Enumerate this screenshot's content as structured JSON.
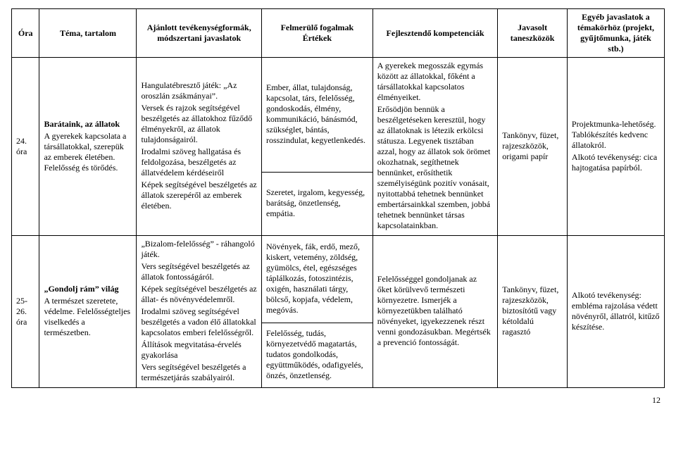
{
  "header": {
    "c1": "Óra",
    "c2": "Téma, tartalom",
    "c3": "Ajánlott tevékenységformák, módszertani javaslatok",
    "c4": "Felmerülő fogalmak Értékek",
    "c5": "Fejlesztendő kompetenciák",
    "c6": "Javasolt taneszközök",
    "c7": "Egyéb javaslatok a témakörhöz (projekt, gyűjtőmunka, játék stb.)"
  },
  "rows": [
    {
      "ora": "24. óra",
      "tema": {
        "title": "Barátaink, az állatok",
        "body": "A gyerekek kapcsolata a társállatokkal, szerepük az emberek életében. Felelősség és törődés."
      },
      "tevekenyseg": "Hangulatébresztő játék: „Az oroszlán zsákmányai”.\nVersek és rajzok segítségével beszélgetés az állatokhoz fűződő élményekről, az állatok tulajdonságairól.\nIrodalmi szöveg hallgatása és feldolgozása, beszélgetés az állatvédelem kérdéseiről\nKépek segítségével beszélgetés az állatok szerepéről az emberek életében.",
      "fogalmak_top": "Ember, állat, tulajdonság, kapcsolat, társ, felelősség, gondoskodás, élmény, kommunikáció, bánásmód, szükséglet, bántás, rosszindulat, kegyetlenkedés.",
      "fogalmak_bottom": "Szeretet, irgalom, kegyesség, barátság, önzetlenség, empátia.",
      "kompetenciak": "A gyerekek megosszák egymás között az állatokkal, főként a társállatokkal kapcsolatos élményeiket.\nErősödjön bennük a beszélgetéseken keresztül, hogy az állatoknak is létezik erkölcsi státusza. Legyenek tisztában azzal, hogy az állatok sok örömet okozhatnak, segíthetnek bennünket, erősíthetik személyiségünk pozitív vonásait, nyitottabbá tehetnek bennünket embertársainkkal szemben, jobbá tehetnek bennünket társas kapcsolatainkban.",
      "taneszkozok": "Tankönyv, füzet, rajzeszközök, origami papír",
      "egyeb": "Projektmunka-lehetőség. Tablókészítés kedvenc állatokról.\n\nAlkotó tevékenység: cica hajtogatása papírból."
    },
    {
      "ora": "25-26. óra",
      "tema": {
        "title": "„Gondolj rám” világ",
        "body": "A természet szeretete, védelme. Felelősségteljes viselkedés a természetben."
      },
      "tevekenyseg": "„Bizalom-felelősség” - ráhangoló játék.\nVers segítségével beszélgetés az állatok fontosságáról.\nKépek segítségével beszélgetés az állat- és növényvédelemről.\nIrodalmi szöveg segítségével beszélgetés a vadon élő állatokkal kapcsolatos emberi felelősségről.\nÁllítások megvitatása-érvelés gyakorlása\nVers segítségével beszélgetés a természetjárás szabályairól.",
      "fogalmak_top": "Növények, fák, erdő, mező, kiskert, vetemény, zöldség, gyümölcs, étel, egészséges táplálkozás, fotoszintézis, oxigén, használati tárgy, bölcső, kopjafa, védelem, megóvás.",
      "fogalmak_bottom": "Felelősség, tudás, környezetvédő magatartás, tudatos gondolkodás, együttműködés, odafigyelés, önzés, önzetlenség.",
      "kompetenciak": "Felelősséggel gondoljanak az őket körülvevő természeti környezetre. Ismerjék a környezetükben található növényeket, igyekezzenek részt venni gondozásukban. Megértsék a prevenció fontosságát.",
      "taneszkozok": "Tankönyv, füzet, rajzeszközök, biztosítótű vagy kétoldalú ragasztó",
      "egyeb": "Alkotó tevékenység: embléma rajzolása védett növényről, állatról, kitűző készítése."
    }
  ],
  "pagenum": "12"
}
